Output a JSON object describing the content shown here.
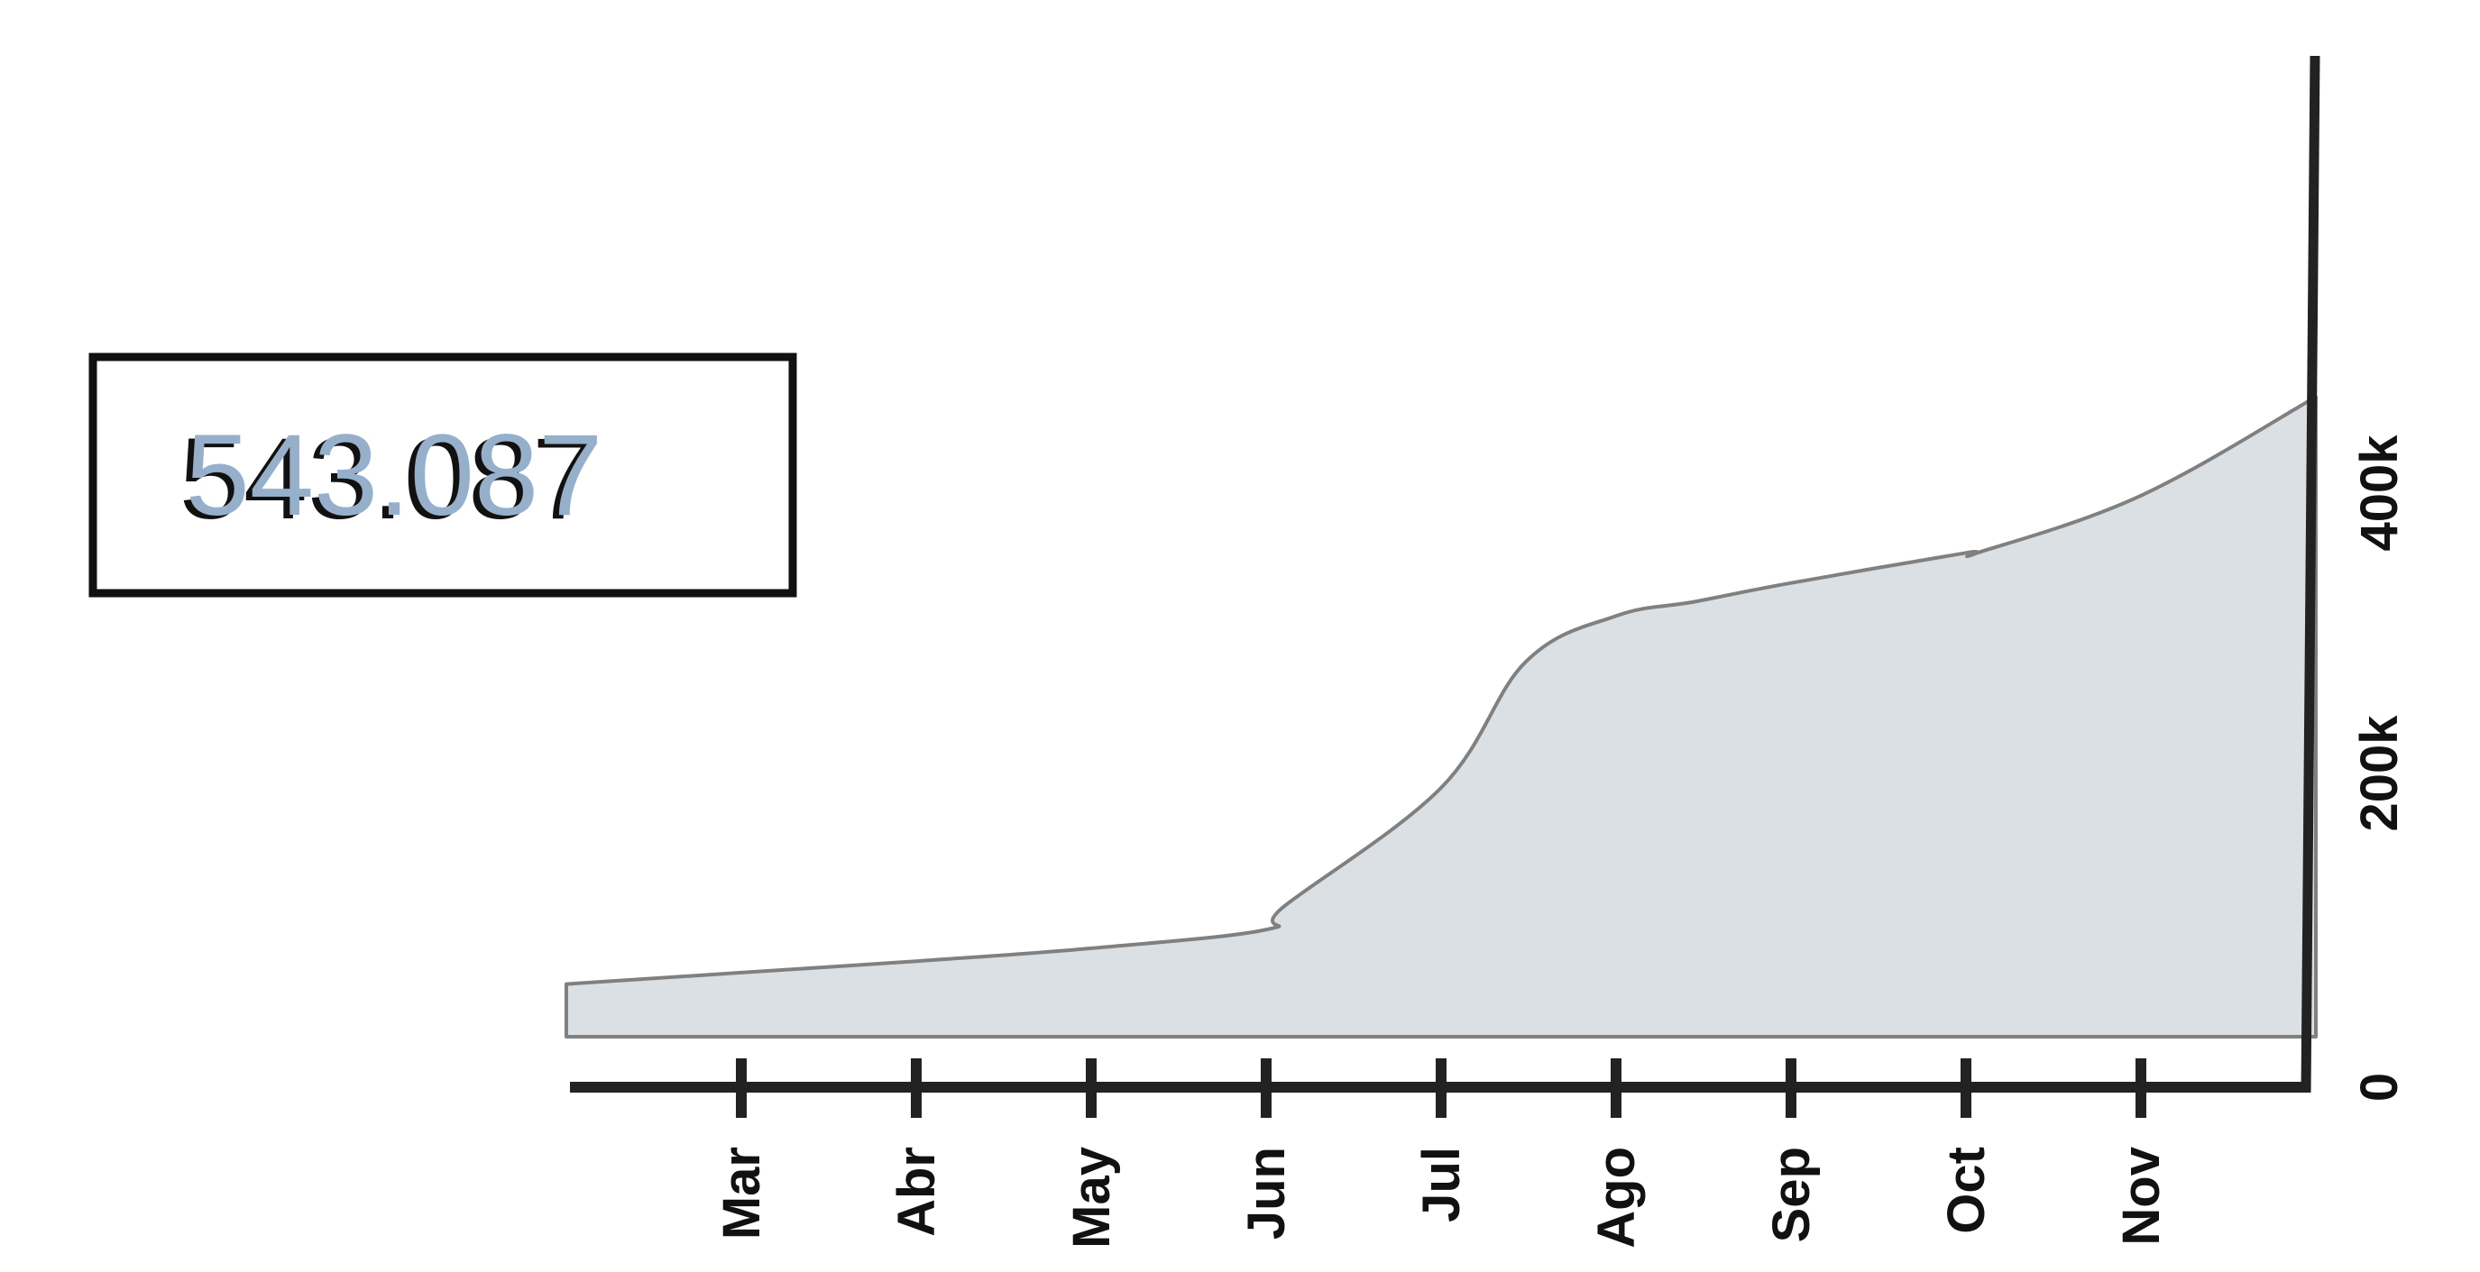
{
  "chart_data": {
    "type": "area",
    "title": "",
    "xlabel": "",
    "ylabel": "",
    "total_label": "543.087",
    "x_ticks": [
      "Mar",
      "Abr",
      "May",
      "Jun",
      "Jul",
      "Ago",
      "Sep",
      "Oct",
      "Nov"
    ],
    "y_ticks": [
      "0",
      "200k",
      "400k"
    ],
    "y_tick_values": [
      0,
      200000,
      400000
    ],
    "ylim": [
      0,
      720000
    ],
    "y_axis_position": "right",
    "grid": false,
    "legend": "none",
    "series": [
      {
        "points": [
          {
            "x": "2020-02-01",
            "y": 72000
          },
          {
            "x": "2020-03-01",
            "y": 80000
          },
          {
            "x": "2020-04-01",
            "y": 88000
          },
          {
            "x": "2020-05-01",
            "y": 97000
          },
          {
            "x": "2020-06-01",
            "y": 110000
          },
          {
            "x": "2020-06-04",
            "y": 126000
          },
          {
            "x": "2020-07-01",
            "y": 209000
          },
          {
            "x": "2020-07-16",
            "y": 297000
          },
          {
            "x": "2020-08-01",
            "y": 329000
          },
          {
            "x": "2020-08-15",
            "y": 339000
          },
          {
            "x": "2020-09-01",
            "y": 352000
          },
          {
            "x": "2020-10-01",
            "y": 373000
          },
          {
            "x": "2020-10-03",
            "y": 373000
          },
          {
            "x": "2020-11-01",
            "y": 413000
          },
          {
            "x": "2020-12-01",
            "y": 482000
          }
        ]
      }
    ],
    "colors": {
      "area_fill": "#dbe0e4",
      "area_stroke": "#808080",
      "axis": "#222222",
      "total_fill": "#96b0cc",
      "total_shadow": "#111111"
    }
  }
}
